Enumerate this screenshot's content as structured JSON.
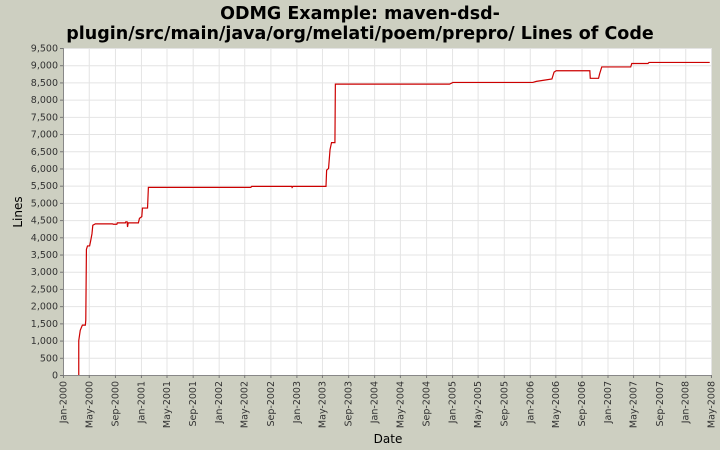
{
  "chart_data": {
    "type": "line",
    "title": "ODMG Example: maven-dsd-plugin/src/main/java/org/melati/poem/prepro/ Lines of Code",
    "title_lines": [
      "ODMG Example: maven-dsd-",
      "plugin/src/main/java/org/melati/poem/prepro/ Lines of Code"
    ],
    "xlabel": "Date",
    "ylabel": "Lines",
    "xlim": [
      "2000-01-01",
      "2008-05-01"
    ],
    "ylim": [
      0,
      9500
    ],
    "grid": true,
    "legend": "none",
    "y_ticks": [
      0,
      500,
      1000,
      1500,
      2000,
      2500,
      3000,
      3500,
      4000,
      4500,
      5000,
      5500,
      6000,
      6500,
      7000,
      7500,
      8000,
      8500,
      9000,
      9500
    ],
    "y_tick_labels": [
      "0",
      "500",
      "1,000",
      "1,500",
      "2,000",
      "2,500",
      "3,000",
      "3,500",
      "4,000",
      "4,500",
      "5,000",
      "5,500",
      "6,000",
      "6,500",
      "7,000",
      "7,500",
      "8,000",
      "8,500",
      "9,000",
      "9,500"
    ],
    "x_ticks": [
      "2000-01-01",
      "2000-05-01",
      "2000-09-01",
      "2001-01-01",
      "2001-05-01",
      "2001-09-01",
      "2002-01-01",
      "2002-05-01",
      "2002-09-01",
      "2003-01-01",
      "2003-05-01",
      "2003-09-01",
      "2004-01-01",
      "2004-05-01",
      "2004-09-01",
      "2005-01-01",
      "2005-05-01",
      "2005-09-01",
      "2006-01-01",
      "2006-05-01",
      "2006-09-01",
      "2007-01-01",
      "2007-05-01",
      "2007-09-01",
      "2008-01-01",
      "2008-05-01"
    ],
    "x_tick_labels": [
      "Jan-2000",
      "May-2000",
      "Sep-2000",
      "Jan-2001",
      "May-2001",
      "Sep-2001",
      "Jan-2002",
      "May-2002",
      "Sep-2002",
      "Jan-2003",
      "May-2003",
      "Sep-2003",
      "Jan-2004",
      "May-2004",
      "Sep-2004",
      "Jan-2005",
      "May-2005",
      "Sep-2005",
      "Jan-2006",
      "May-2006",
      "Sep-2006",
      "Jan-2007",
      "May-2007",
      "Sep-2007",
      "Jan-2008",
      "May-2008"
    ],
    "series": [
      {
        "color": "#cc0000",
        "points": [
          [
            "2000-03-15",
            0
          ],
          [
            "2000-03-15",
            1000
          ],
          [
            "2000-03-22",
            1300
          ],
          [
            "2000-04-01",
            1450
          ],
          [
            "2000-04-15",
            1450
          ],
          [
            "2000-04-17",
            1600
          ],
          [
            "2000-04-20",
            3650
          ],
          [
            "2000-04-25",
            3750
          ],
          [
            "2000-05-05",
            3750
          ],
          [
            "2000-05-10",
            3900
          ],
          [
            "2000-05-16",
            4100
          ],
          [
            "2000-05-20",
            4350
          ],
          [
            "2000-06-01",
            4390
          ],
          [
            "2000-08-20",
            4390
          ],
          [
            "2000-08-25",
            4380
          ],
          [
            "2000-09-10",
            4380
          ],
          [
            "2000-09-12",
            4420
          ],
          [
            "2000-10-20",
            4420
          ],
          [
            "2000-10-22",
            4450
          ],
          [
            "2000-10-28",
            4450
          ],
          [
            "2000-10-30",
            4300
          ],
          [
            "2000-11-02",
            4420
          ],
          [
            "2000-12-20",
            4420
          ],
          [
            "2000-12-25",
            4550
          ],
          [
            "2001-01-05",
            4600
          ],
          [
            "2001-01-08",
            4850
          ],
          [
            "2001-02-01",
            4850
          ],
          [
            "2001-02-05",
            5450
          ],
          [
            "2002-06-01",
            5450
          ],
          [
            "2002-06-05",
            5480
          ],
          [
            "2002-12-10",
            5480
          ],
          [
            "2002-12-12",
            5450
          ],
          [
            "2002-12-16",
            5480
          ],
          [
            "2003-05-20",
            5480
          ],
          [
            "2003-05-23",
            5950
          ],
          [
            "2003-06-01",
            6000
          ],
          [
            "2003-06-08",
            6550
          ],
          [
            "2003-06-15",
            6750
          ],
          [
            "2003-07-01",
            6750
          ],
          [
            "2003-07-03",
            8450
          ],
          [
            "2004-12-20",
            8450
          ],
          [
            "2005-01-05",
            8500
          ],
          [
            "2006-01-15",
            8500
          ],
          [
            "2006-02-01",
            8530
          ],
          [
            "2006-03-15",
            8570
          ],
          [
            "2006-04-15",
            8600
          ],
          [
            "2006-04-25",
            8800
          ],
          [
            "2006-05-05",
            8840
          ],
          [
            "2006-10-10",
            8840
          ],
          [
            "2006-10-12",
            8620
          ],
          [
            "2006-11-20",
            8620
          ],
          [
            "2006-11-25",
            8750
          ],
          [
            "2006-12-05",
            8950
          ],
          [
            "2007-04-20",
            8950
          ],
          [
            "2007-04-25",
            9050
          ],
          [
            "2007-07-10",
            9050
          ],
          [
            "2007-07-15",
            9080
          ],
          [
            "2008-04-25",
            9080
          ]
        ]
      }
    ]
  }
}
